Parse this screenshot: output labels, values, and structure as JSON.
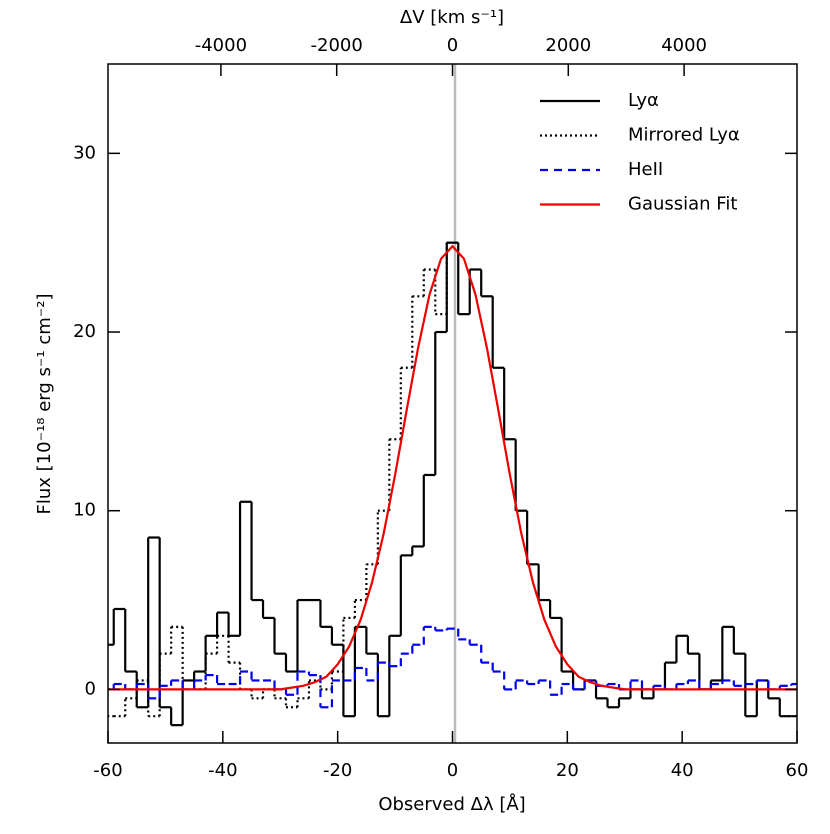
{
  "chart_data": {
    "type": "step",
    "x_label": "Observed Δλ [Å]",
    "y_label": "Flux [10⁻¹⁸ erg s⁻¹ cm⁻²]",
    "x2_label": "ΔV [km s⁻¹]",
    "x": [
      -60,
      -58,
      -56,
      -54,
      -52,
      -50,
      -48,
      -46,
      -44,
      -42,
      -40,
      -38,
      -36,
      -34,
      -32,
      -30,
      -28,
      -26,
      -24,
      -22,
      -20,
      -18,
      -16,
      -14,
      -12,
      -10,
      -8,
      -6,
      -4,
      -2,
      0,
      2,
      4,
      6,
      8,
      10,
      12,
      14,
      16,
      18,
      20,
      22,
      24,
      26,
      28,
      30,
      32,
      34,
      36,
      38,
      40,
      42,
      44,
      46,
      48,
      50,
      52,
      54,
      56,
      58,
      60
    ],
    "series": [
      {
        "name": "Lyα",
        "color": "#000000",
        "style": "solid",
        "step": true,
        "values": [
          2.5,
          4.5,
          1,
          -1,
          8.5,
          -1,
          -2,
          0.5,
          1,
          3,
          4.3,
          3,
          10.5,
          5,
          4,
          2,
          1,
          5,
          5,
          3.5,
          2.5,
          -1.5,
          3.5,
          2,
          -1.5,
          3,
          7.5,
          8,
          12,
          20,
          25,
          21,
          23.5,
          22,
          18,
          14,
          10,
          7,
          5,
          4,
          1,
          0,
          0.5,
          -0.5,
          -1,
          -0.5,
          0,
          -0.5,
          0,
          1.5,
          3,
          2,
          0,
          0.5,
          3.5,
          2,
          -1.5,
          0.5,
          -0.5,
          -1.5,
          -1.5
        ]
      },
      {
        "name": "Mirrored Lyα",
        "color": "#000000",
        "style": "dotted",
        "step": true,
        "values": [
          -1.5,
          -1.5,
          -0.5,
          0.5,
          -1.5,
          2,
          3.5,
          0.5,
          0,
          2,
          3,
          1.5,
          0,
          -0.5,
          0,
          -0.5,
          -1,
          -0.5,
          0.5,
          0,
          1,
          4,
          5,
          7,
          10,
          14,
          18,
          22,
          23.5,
          21,
          25,
          null,
          null,
          null,
          null,
          null,
          null,
          null,
          null,
          null,
          null,
          null,
          null,
          null,
          null,
          null,
          null,
          null,
          null,
          null,
          null,
          null,
          null,
          null,
          null,
          null,
          null,
          null,
          null,
          null,
          null
        ]
      },
      {
        "name": "HeII",
        "color": "#0000ee",
        "style": "dashed",
        "step": true,
        "values": [
          0,
          0.3,
          0,
          0.3,
          -0.5,
          0.2,
          0.5,
          0,
          0.5,
          0.8,
          0.3,
          0.3,
          1,
          0.5,
          0.5,
          0,
          -0.3,
          1,
          0.8,
          -1,
          0.5,
          0.5,
          1.2,
          0.5,
          1.5,
          1.3,
          2,
          2.5,
          3.5,
          3.3,
          3.4,
          2.8,
          2.5,
          1.5,
          1,
          0,
          0.5,
          0.3,
          0.5,
          -0.3,
          0.3,
          0,
          0.5,
          0.2,
          0.3,
          0,
          0.5,
          0,
          0.2,
          0,
          0.3,
          0.5,
          0,
          0.3,
          0.5,
          0.2,
          0.3,
          0.5,
          0,
          0.2,
          0.3
        ]
      },
      {
        "name": "Gaussian Fit",
        "color": "#ee0000",
        "style": "solid",
        "step": false,
        "values": [
          0,
          0,
          0,
          0,
          0,
          0,
          0,
          0,
          0,
          0,
          0,
          0,
          0,
          0,
          0,
          0,
          0.1,
          0.2,
          0.4,
          0.7,
          1.4,
          2.4,
          3.9,
          6.0,
          8.7,
          12.0,
          15.6,
          19.1,
          22.1,
          24.1,
          24.8,
          24.1,
          22.1,
          19.1,
          15.6,
          12.0,
          8.7,
          6.0,
          3.9,
          2.4,
          1.4,
          0.7,
          0.4,
          0.2,
          0.1,
          0,
          0,
          0,
          0,
          0,
          0,
          0,
          0,
          0,
          0,
          0,
          0,
          0,
          0,
          0,
          0
        ]
      }
    ],
    "xlim": [
      -60,
      60
    ],
    "xticks": [
      -60,
      -40,
      -20,
      0,
      20,
      40,
      60
    ],
    "ylim": [
      -3,
      35
    ],
    "yticks": [
      0,
      10,
      20,
      30
    ],
    "x2lim": [
      -5950,
      5950
    ],
    "x2ticks": [
      -4000,
      -2000,
      0,
      2000,
      4000
    ],
    "legend": "upper right"
  }
}
